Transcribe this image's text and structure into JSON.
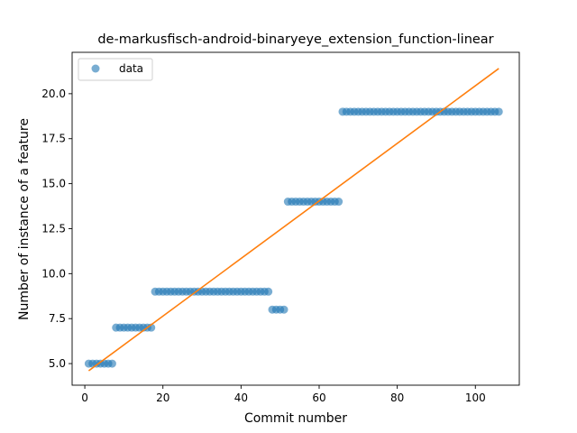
{
  "chart_data": {
    "type": "scatter",
    "title": "de-markusfisch-android-binaryeye_extension_function-linear",
    "xlabel": "Commit number",
    "ylabel": "Number of instance of a feature",
    "xlim": [
      -3.25,
      111.25
    ],
    "ylim": [
      3.8,
      22.3
    ],
    "xticks": [
      0,
      20,
      40,
      60,
      80,
      100
    ],
    "yticks": [
      5.0,
      7.5,
      10.0,
      12.5,
      15.0,
      17.5,
      20.0
    ],
    "ytick_labels": [
      "5.0",
      "7.5",
      "10.0",
      "12.5",
      "15.0",
      "17.5",
      "20.0"
    ],
    "grid": false,
    "legend": {
      "placement": "top-left",
      "entries": [
        "data"
      ]
    },
    "colors": {
      "data": "#1f77b4",
      "fit": "#ff7f0e"
    },
    "segments": [
      {
        "x_start": 1,
        "x_end": 7,
        "y": 5
      },
      {
        "x_start": 8,
        "x_end": 17,
        "y": 7
      },
      {
        "x_start": 18,
        "x_end": 47,
        "y": 9
      },
      {
        "x_start": 48,
        "x_end": 51,
        "y": 8
      },
      {
        "x_start": 52,
        "x_end": 65,
        "y": 14
      },
      {
        "x_start": 66,
        "x_end": 106,
        "y": 19
      }
    ],
    "fit_line": {
      "x": [
        1,
        106
      ],
      "y": [
        4.6,
        21.4
      ]
    }
  }
}
